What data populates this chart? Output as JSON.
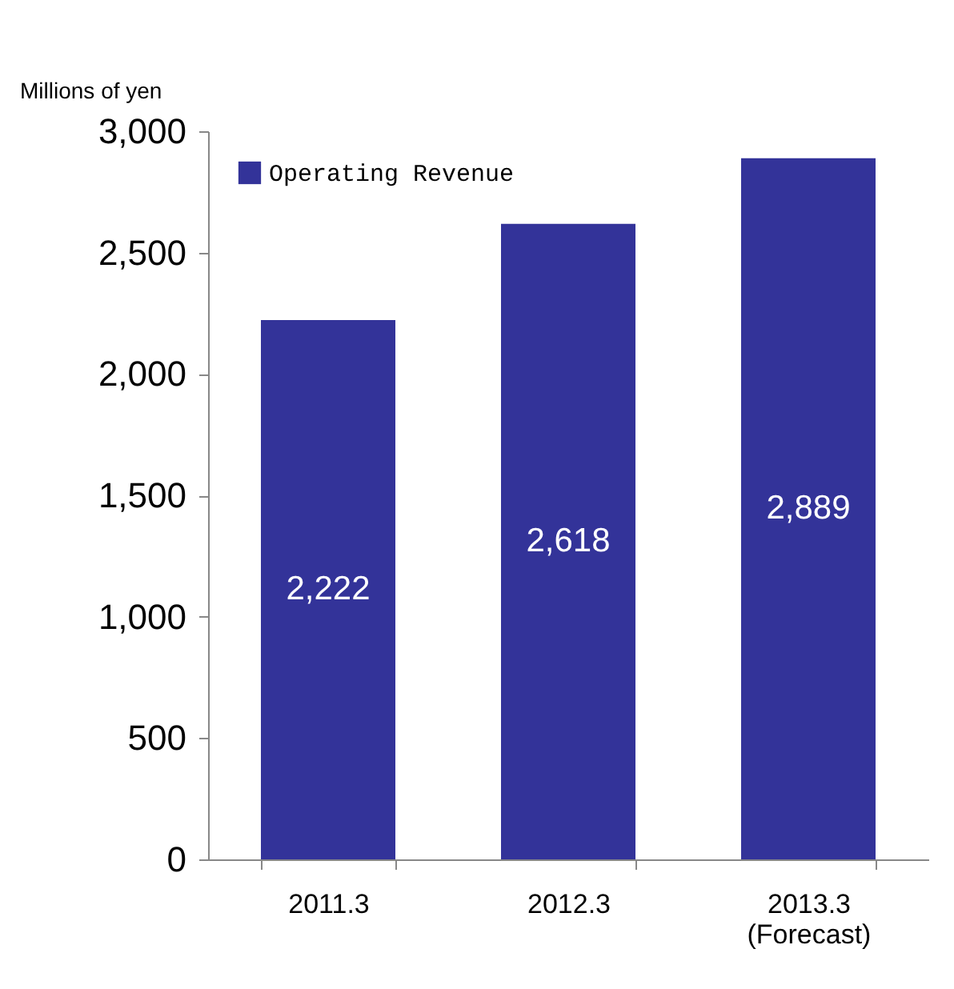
{
  "chart_data": {
    "type": "bar",
    "ylabel": "Millions of yen",
    "categories": [
      "2011.3",
      "2012.3",
      "2013.3\n(Forecast)"
    ],
    "series": [
      {
        "name": "Operating Revenue",
        "color": "#333399",
        "values": [
          2222,
          2618,
          2889
        ],
        "value_labels": [
          "2,222",
          "2,618",
          "2,889"
        ]
      }
    ],
    "ylim": [
      0,
      3000
    ],
    "yticks": [
      0,
      {
        "value": 500,
        "label": "500"
      },
      {
        "value": 1000,
        "label": "1,000"
      },
      {
        "value": 1500,
        "label": "1,500"
      },
      {
        "value": 2000,
        "label": "2,000"
      },
      {
        "value": 2500,
        "label": "2,500"
      },
      {
        "value": 3000,
        "label": "3,000"
      }
    ],
    "grid": false,
    "legend": "top left"
  }
}
